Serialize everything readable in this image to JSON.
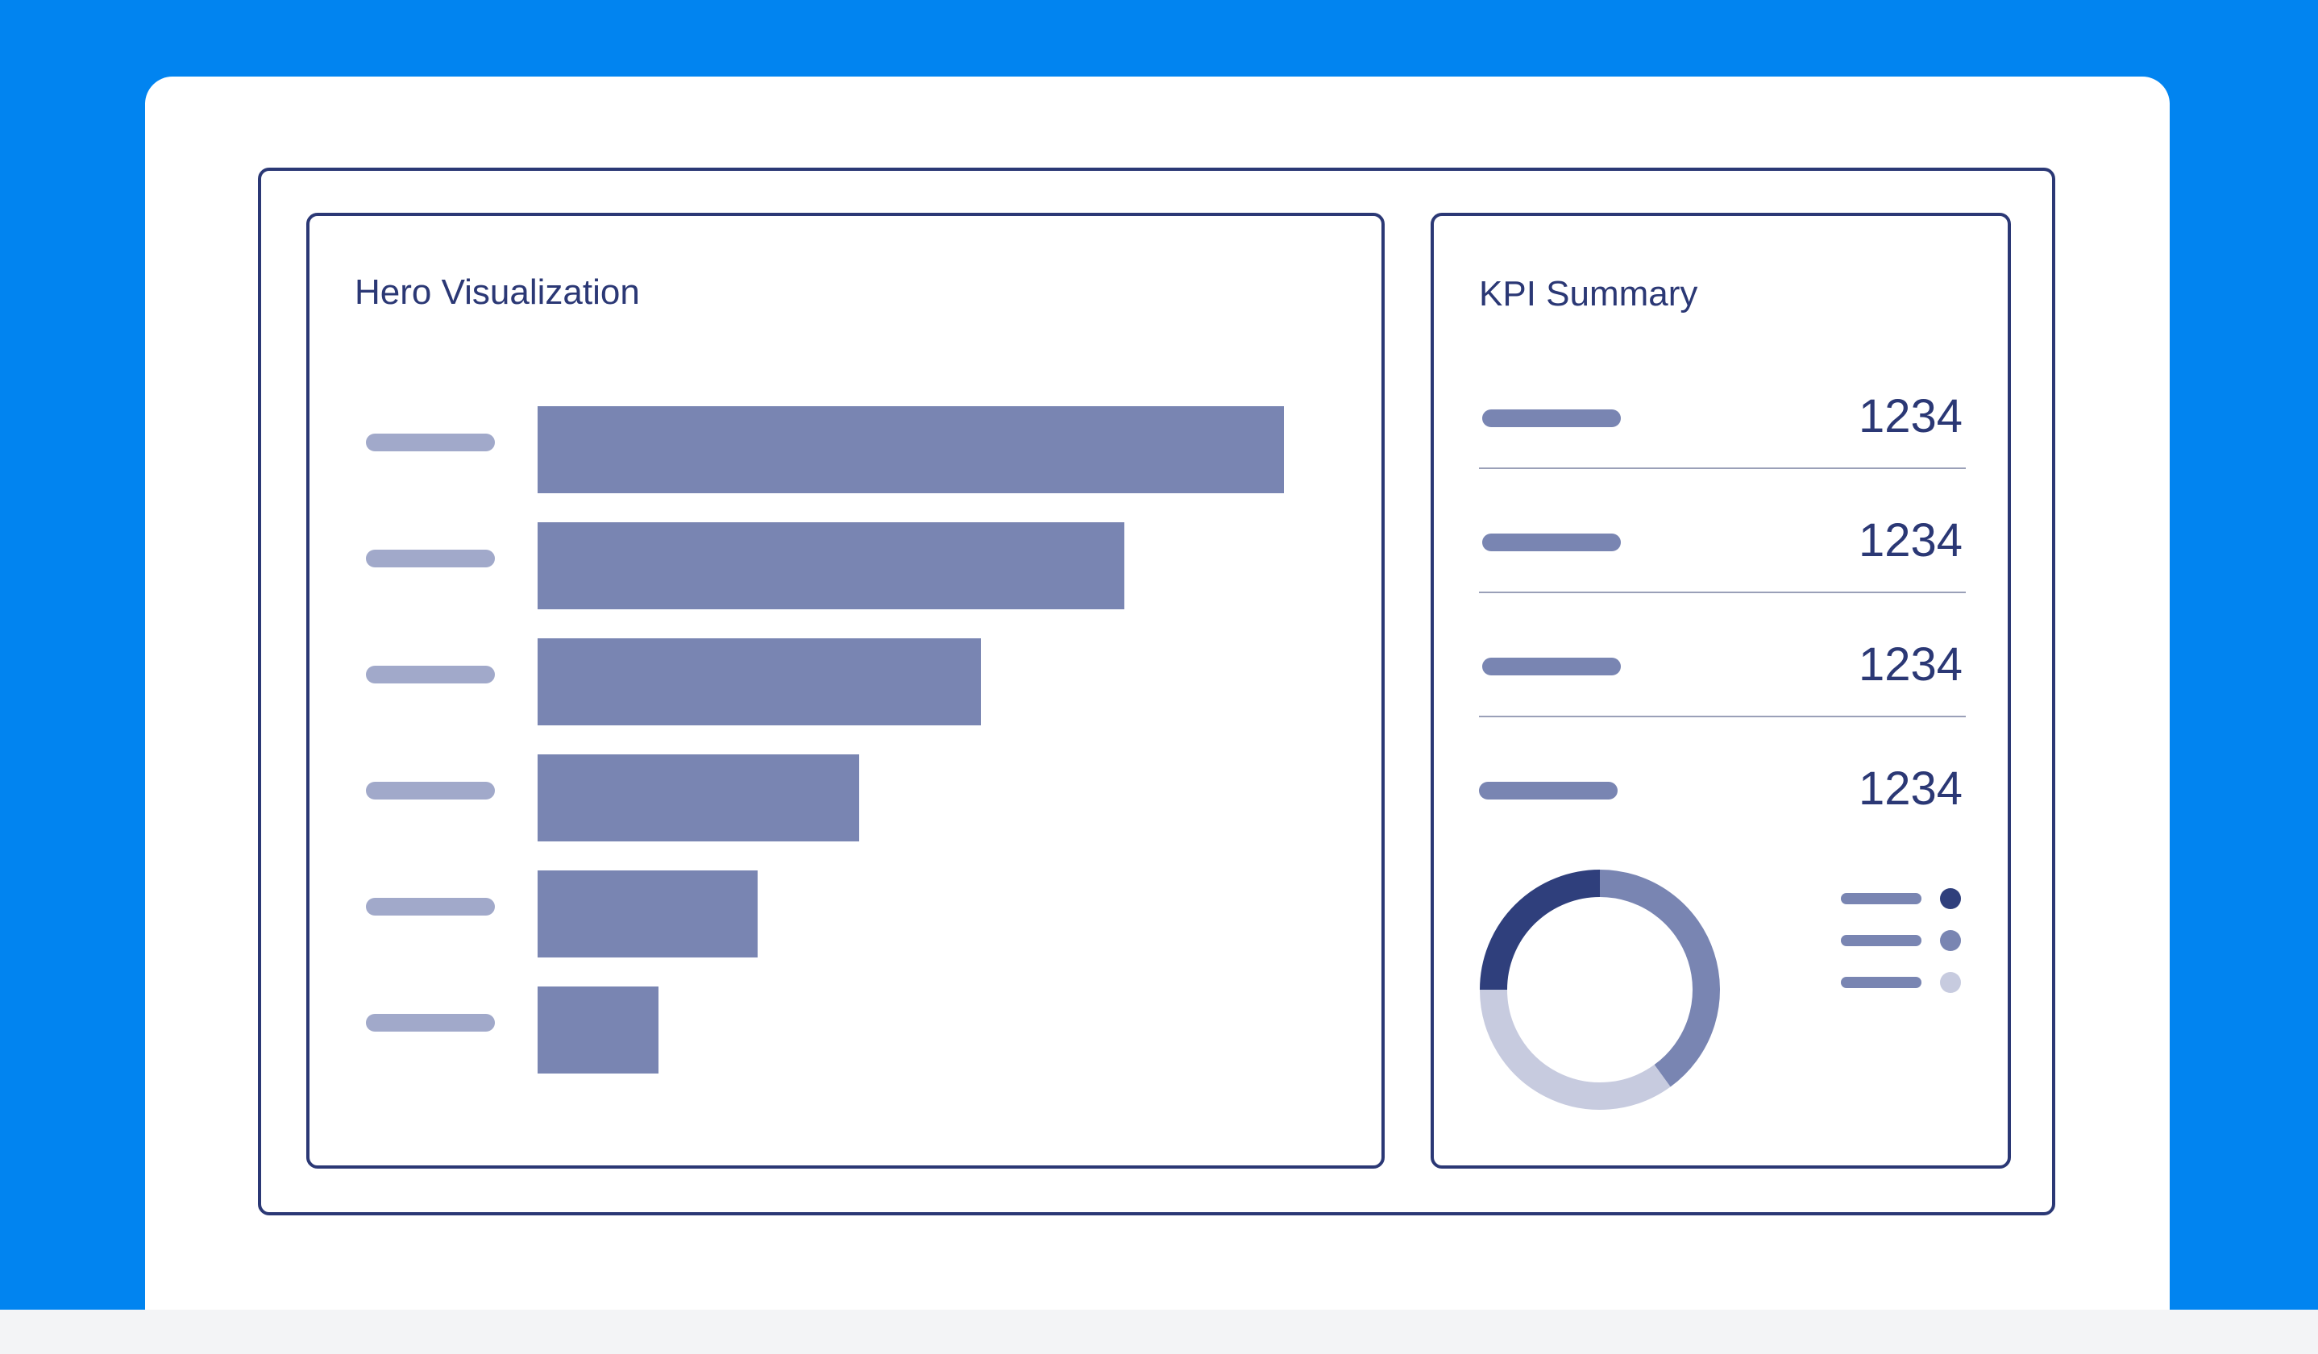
{
  "hero": {
    "title": "Hero Visualization"
  },
  "kpi": {
    "title": "KPI Summary",
    "rows": [
      {
        "value": "1234"
      },
      {
        "value": "1234"
      },
      {
        "value": "1234"
      },
      {
        "value": "1234"
      }
    ]
  },
  "chart_data": [
    {
      "type": "bar",
      "title": "",
      "categories": [
        "",
        "",
        "",
        "",
        "",
        ""
      ],
      "values": [
        100,
        78.6,
        59.4,
        43.1,
        29.5,
        16.2
      ],
      "color": "#7985b2"
    },
    {
      "type": "pie",
      "title": "",
      "values": [
        40,
        35,
        25
      ],
      "colors": [
        "#7985b2",
        "#c7cbdf",
        "#2f3f7c"
      ],
      "legend_dot_colors": [
        "#2f3f7c",
        "#7985b2",
        "#c7cbdf"
      ]
    }
  ],
  "colors": {
    "background": "#0184f0",
    "card": "#ffffff",
    "border": "#2b3875",
    "bar": "#7985b2",
    "label_placeholder": "#a1a9ca"
  }
}
